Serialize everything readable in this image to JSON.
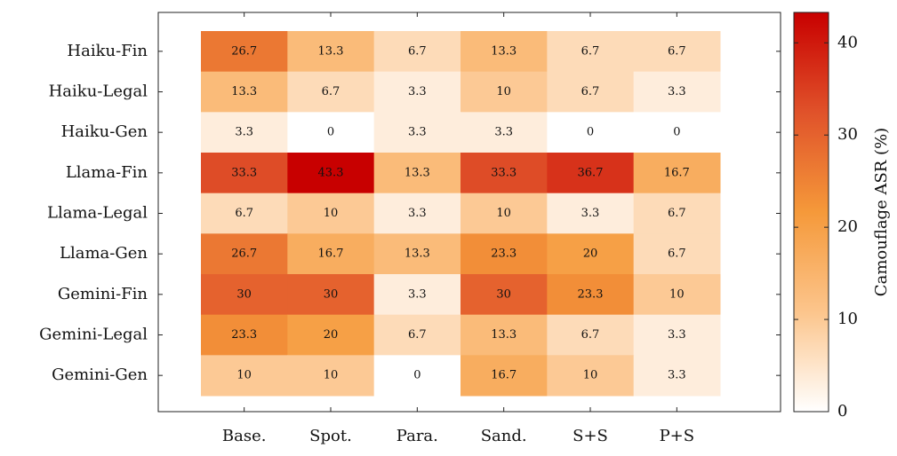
{
  "chart_data": {
    "type": "heatmap",
    "x_categories": [
      "Base.",
      "Spot.",
      "Para.",
      "Sand.",
      "S+S",
      "P+S"
    ],
    "y_categories": [
      "Haiku-Fin",
      "Haiku-Legal",
      "Haiku-Gen",
      "Llama-Fin",
      "Llama-Legal",
      "Llama-Gen",
      "Gemini-Fin",
      "Gemini-Legal",
      "Gemini-Gen"
    ],
    "values": [
      [
        26.7,
        13.3,
        6.7,
        13.3,
        6.7,
        6.7
      ],
      [
        13.3,
        6.7,
        3.3,
        10,
        6.7,
        3.3
      ],
      [
        3.3,
        0,
        3.3,
        3.3,
        0,
        0
      ],
      [
        33.3,
        43.3,
        13.3,
        33.3,
        36.7,
        16.7
      ],
      [
        6.7,
        10,
        3.3,
        10,
        3.3,
        6.7
      ],
      [
        26.7,
        16.7,
        13.3,
        23.3,
        20,
        6.7
      ],
      [
        30,
        30,
        3.3,
        30,
        23.3,
        10
      ],
      [
        23.3,
        20,
        6.7,
        13.3,
        6.7,
        3.3
      ],
      [
        10,
        10,
        0,
        16.7,
        10,
        3.3
      ]
    ],
    "colorbar_label": "Camouflage ASR (%)",
    "clim": [
      0,
      43.3
    ],
    "cticks": [
      0,
      10,
      20,
      30,
      40
    ],
    "colormap": [
      "#ffffff",
      "#fcc58c",
      "#f5993a",
      "#e0522a",
      "#c80000"
    ]
  }
}
